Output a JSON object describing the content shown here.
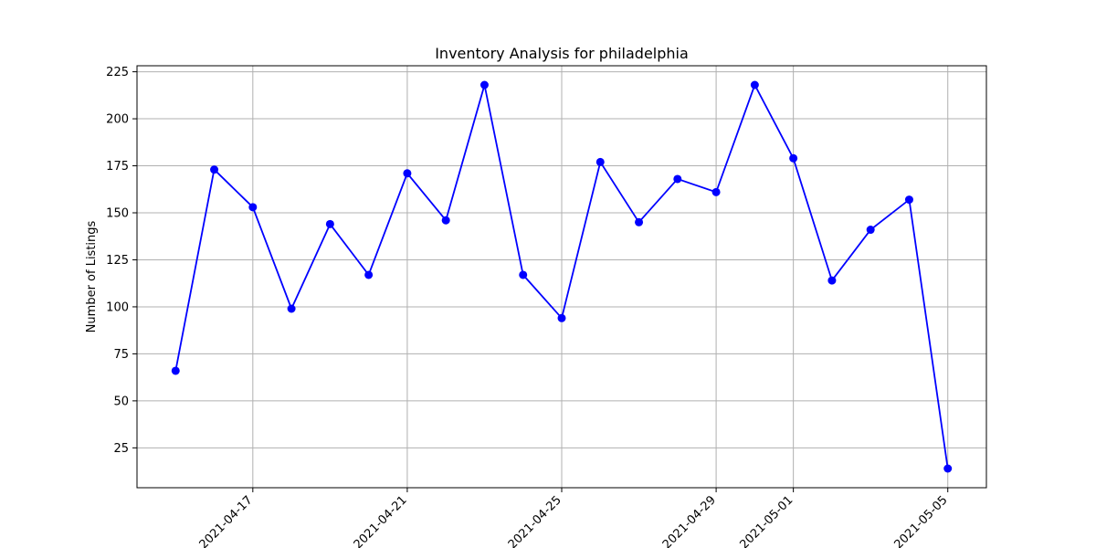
{
  "chart_data": {
    "type": "line",
    "title": "Inventory Analysis for philadelphia",
    "xlabel": "",
    "ylabel": "Number of Listings",
    "x": [
      "2021-04-15",
      "2021-04-16",
      "2021-04-17",
      "2021-04-18",
      "2021-04-19",
      "2021-04-20",
      "2021-04-21",
      "2021-04-22",
      "2021-04-23",
      "2021-04-24",
      "2021-04-25",
      "2021-04-26",
      "2021-04-27",
      "2021-04-28",
      "2021-04-29",
      "2021-04-30",
      "2021-05-01",
      "2021-05-02",
      "2021-05-03",
      "2021-05-04",
      "2021-05-05"
    ],
    "series": [
      {
        "values": [
          66,
          173,
          153,
          99,
          144,
          117,
          171,
          146,
          218,
          117,
          94,
          177,
          145,
          168,
          161,
          218,
          179,
          114,
          141,
          157,
          14
        ]
      }
    ],
    "xticks": [
      "2021-04-17",
      "2021-04-21",
      "2021-04-25",
      "2021-04-29",
      "2021-05-01",
      "2021-05-05"
    ],
    "yticks": [
      25,
      50,
      75,
      100,
      125,
      150,
      175,
      200,
      225
    ],
    "xlim": [
      "2021-04-14",
      "2021-05-06"
    ],
    "ylim": [
      3.8,
      228.2
    ],
    "grid": true,
    "color": "#0000ff",
    "marker": "circle"
  }
}
